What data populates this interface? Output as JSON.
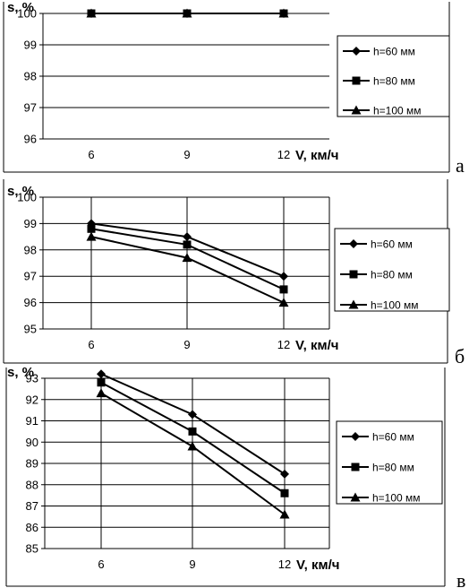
{
  "chart_data": [
    {
      "type": "line",
      "panel_label": "а",
      "ylabel": "s, %",
      "xlabel": "V, км/ч",
      "categories": [
        "6",
        "9",
        "12"
      ],
      "ylim": [
        96,
        100
      ],
      "yticks": [
        "96",
        "97",
        "98",
        "99",
        "100"
      ],
      "grid": "horizontal",
      "legend": "right",
      "series": [
        {
          "name": "h=60 мм",
          "marker": "diamond",
          "values": [
            100,
            100,
            100
          ]
        },
        {
          "name": "h=80 мм",
          "marker": "square",
          "values": [
            100,
            100,
            100
          ]
        },
        {
          "name": "h=100 мм",
          "marker": "triangle",
          "values": [
            100,
            100,
            100
          ]
        }
      ]
    },
    {
      "type": "line",
      "panel_label": "б",
      "ylabel": "s, %",
      "xlabel": "V, км/ч",
      "categories": [
        "6",
        "9",
        "12"
      ],
      "ylim": [
        95,
        100
      ],
      "yticks": [
        "95",
        "96",
        "97",
        "98",
        "99",
        "100"
      ],
      "grid": "both",
      "legend": "right",
      "series": [
        {
          "name": "h=60 мм",
          "marker": "diamond",
          "values": [
            99.0,
            98.5,
            97.0
          ]
        },
        {
          "name": "h=80 мм",
          "marker": "square",
          "values": [
            98.8,
            98.2,
            96.5
          ]
        },
        {
          "name": "h=100 мм",
          "marker": "triangle",
          "values": [
            98.5,
            97.7,
            96.0
          ]
        }
      ]
    },
    {
      "type": "line",
      "panel_label": "в",
      "ylabel": "s, %",
      "xlabel": "V, км/ч",
      "categories": [
        "6",
        "9",
        "12"
      ],
      "ylim": [
        85,
        93
      ],
      "yticks": [
        "85",
        "86",
        "87",
        "88",
        "89",
        "90",
        "91",
        "92",
        "93"
      ],
      "grid": "both",
      "legend": "right",
      "series": [
        {
          "name": "h=60 мм",
          "marker": "diamond",
          "values": [
            93.2,
            91.3,
            88.5
          ]
        },
        {
          "name": "h=80 мм",
          "marker": "square",
          "values": [
            92.8,
            90.5,
            87.6
          ]
        },
        {
          "name": "h=100 мм",
          "marker": "triangle",
          "values": [
            92.3,
            89.8,
            86.6
          ]
        }
      ]
    }
  ]
}
